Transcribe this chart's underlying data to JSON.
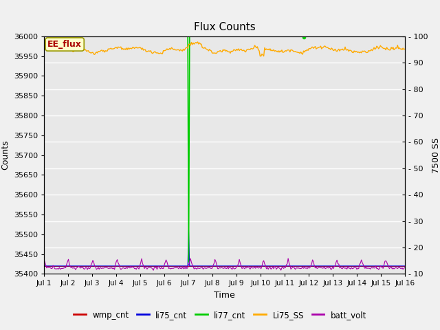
{
  "title": "Flux Counts",
  "xlabel": "Time",
  "ylabel_left": "Counts",
  "ylabel_right": "7500 SS",
  "ylim_left": [
    35400,
    36000
  ],
  "ylim_right": [
    10,
    100
  ],
  "x_ticks": [
    "Jul 1",
    "Jul 2",
    "Jul 3",
    "Jul 4",
    "Jul 5",
    "Jul 6",
    "Jul 7",
    "Jul 8",
    "Jul 9",
    "Jul 10",
    "Jul 11",
    "Jul 12",
    "Jul 13",
    "Jul 14",
    "Jul 15",
    "Jul 16"
  ],
  "annotation_text": "EE_flux",
  "annotation_color": "#aa0000",
  "annotation_bg": "#ffffcc",
  "annotation_border": "#999900",
  "colors": {
    "wmp_cnt": "#cc0000",
    "li75_cnt": "#0000dd",
    "li77_cnt": "#00cc00",
    "Li75_SS": "#ffaa00",
    "batt_volt": "#aa00aa"
  },
  "plot_bg": "#e8e8e8",
  "fig_bg": "#f0f0f0",
  "grid_color": "#ffffff"
}
